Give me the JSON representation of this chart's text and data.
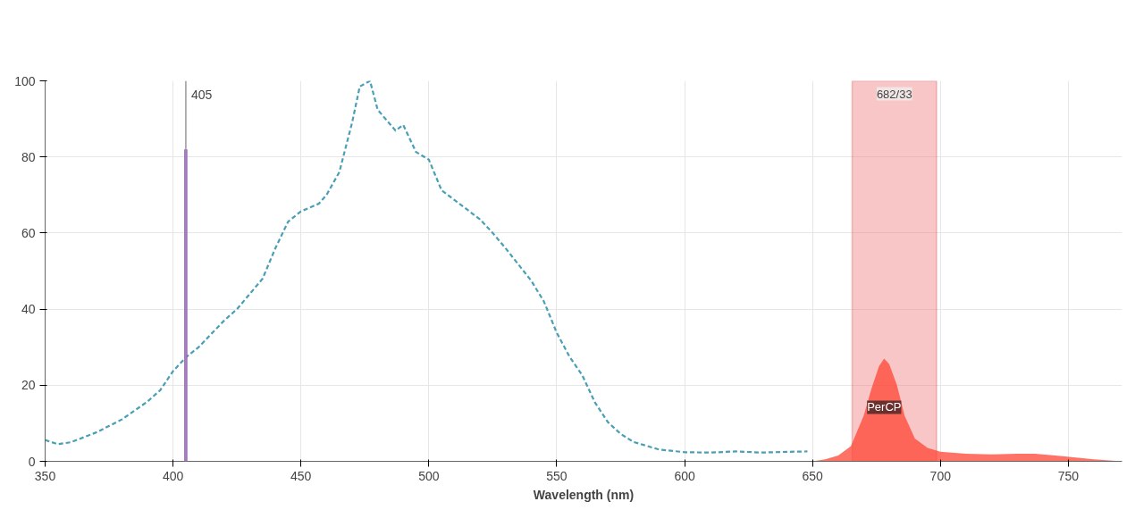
{
  "chart_data": {
    "type": "line",
    "xlabel": "Wavelength (nm)",
    "xlim": [
      350,
      771
    ],
    "xticks": [
      350,
      400,
      450,
      500,
      550,
      600,
      650,
      700,
      750
    ],
    "ylim": [
      0,
      100
    ],
    "yticks": [
      0,
      20,
      40,
      60,
      80,
      100
    ],
    "grid": true,
    "series": [
      {
        "color": "#4a9fb5",
        "line_style": "dashed",
        "x": [
          350,
          355,
          360,
          370,
          380,
          390,
          395,
          400,
          405,
          410,
          420,
          425,
          430,
          435,
          440,
          445,
          450,
          457,
          460,
          465,
          470,
          473,
          477,
          480,
          487,
          490,
          495,
          500,
          505,
          510,
          520,
          525,
          530,
          540,
          545,
          550,
          555,
          560,
          565,
          570,
          575,
          580,
          590,
          600,
          610,
          620,
          630,
          640,
          648
        ],
        "values": [
          5.6,
          4.5,
          5,
          7.6,
          11,
          15.7,
          18.7,
          23.7,
          27.3,
          30,
          37,
          40,
          44,
          48,
          56,
          63,
          65.7,
          67.7,
          70,
          76,
          89,
          98.5,
          100,
          92.4,
          86.9,
          88.4,
          81.3,
          79.3,
          71.2,
          68.7,
          63.6,
          60,
          56,
          47.5,
          42,
          33.8,
          27.5,
          22.6,
          15.4,
          10.3,
          7.2,
          5.1,
          3.1,
          2.4,
          2.3,
          2.6,
          2.3,
          2.5,
          2.6
        ]
      },
      {
        "type": "area",
        "name": "PerCP",
        "color": "#ff4433",
        "x": [
          650,
          655,
          660,
          665,
          670,
          673,
          676,
          678,
          680,
          683,
          686,
          690,
          695,
          700,
          710,
          720,
          730,
          737,
          745,
          760,
          771
        ],
        "values": [
          0,
          0.5,
          1.5,
          4,
          12,
          19,
          25,
          27,
          25.5,
          20,
          12,
          6,
          3.5,
          2.5,
          2,
          1.8,
          2,
          2,
          1.5,
          0.5,
          0
        ]
      },
      {
        "type": "bar",
        "color": "#9b4dca",
        "x": [
          405
        ],
        "values": [
          82
        ]
      }
    ],
    "ref_lines": [
      {
        "axis": "x",
        "value": 405,
        "label": "405",
        "color": "#999999"
      }
    ],
    "bands": [
      {
        "axis": "x",
        "from": 665.5,
        "to": 698.5,
        "label": "682/33",
        "color": "#f08080"
      }
    ]
  }
}
